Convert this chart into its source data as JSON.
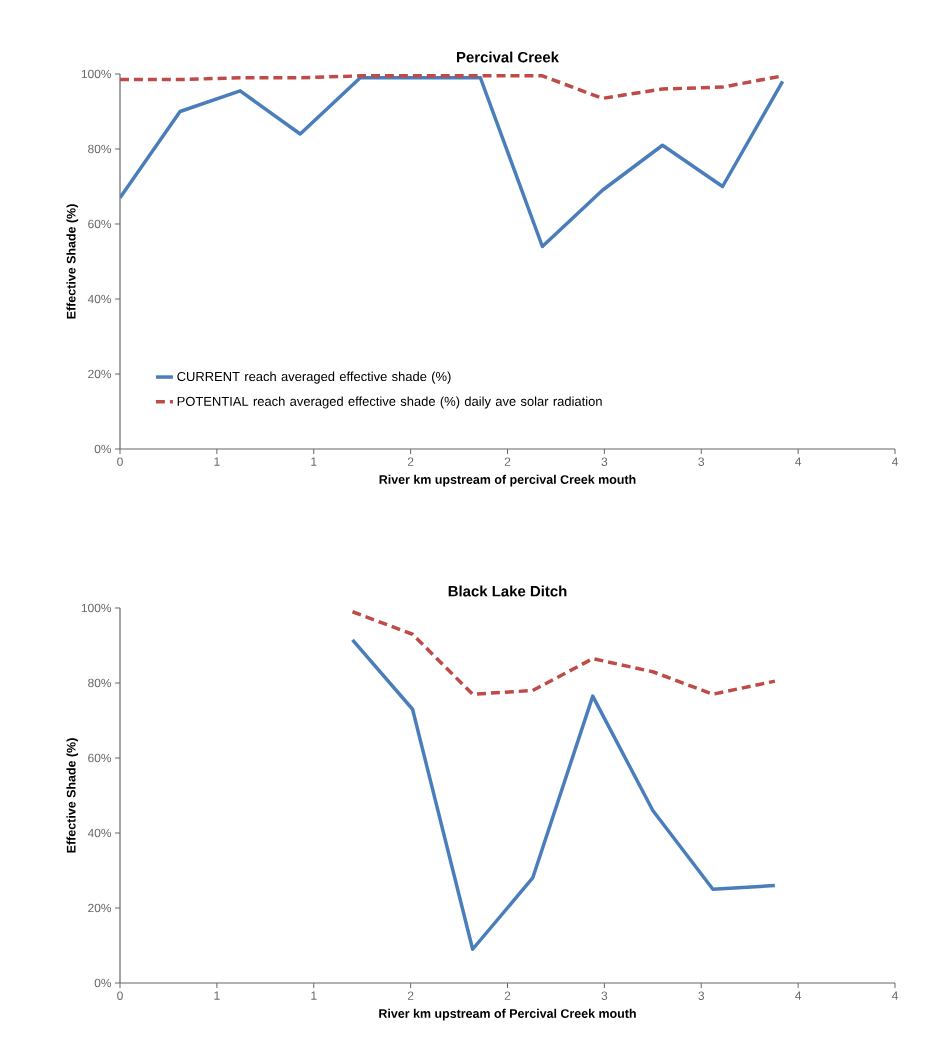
{
  "chart_data": [
    {
      "type": "line",
      "title": "Percival Creek",
      "xlabel": "River km upstream of percival Creek mouth",
      "ylabel": "Effective Shade (%)",
      "x": [
        0,
        0.31,
        0.62,
        0.93,
        1.24,
        1.54,
        1.86,
        2.18,
        2.49,
        2.8,
        3.11,
        3.42
      ],
      "series": [
        {
          "name": "CURRENT reach averaged effective shade (%)",
          "color": "#4a7ebb",
          "line_style": "solid",
          "values": [
            67,
            90,
            95.5,
            84,
            99,
            99,
            99,
            54,
            69,
            81,
            70,
            98
          ]
        },
        {
          "name": "POTENTIAL reach averaged effective shade (%) daily ave solar radiation",
          "color": "#be4b48",
          "line_style": "dashed",
          "values": [
            98.5,
            98.5,
            99,
            99,
            99.5,
            99.5,
            99.5,
            99.5,
            93.5,
            96,
            96.5,
            99.5
          ]
        }
      ],
      "xlim": [
        0,
        4
      ],
      "ylim": [
        0,
        100
      ],
      "xticks": [
        0,
        {
          "value": 0.5,
          "label": "1"
        },
        1,
        {
          "value": 1.5,
          "label": "2"
        },
        2,
        {
          "value": 2.5,
          "label": "3"
        },
        3,
        {
          "value": 3.5,
          "label": "4"
        },
        4
      ],
      "yticks": [
        {
          "value": 0,
          "label": "0%"
        },
        {
          "value": 20,
          "label": "20%"
        },
        {
          "value": 40,
          "label": "40%"
        },
        {
          "value": 60,
          "label": "60%"
        },
        {
          "value": 80,
          "label": "80%"
        },
        {
          "value": 100,
          "label": "100%"
        }
      ],
      "legend": "bottom left"
    },
    {
      "type": "line",
      "title": "Black Lake Ditch",
      "xlabel": "River km upstream of Percival Creek mouth",
      "ylabel": "Effective Shade (%)",
      "x": [
        1.2,
        1.51,
        1.82,
        2.13,
        2.44,
        2.75,
        3.06,
        3.38
      ],
      "series": [
        {
          "color": "#4a7ebb",
          "line_style": "solid",
          "values": [
            91.5,
            73,
            9,
            28,
            76.5,
            46,
            25,
            26
          ]
        },
        {
          "color": "#be4b48",
          "line_style": "dashed",
          "values": [
            99,
            93,
            77,
            78,
            86.5,
            83,
            77,
            80.5
          ]
        }
      ],
      "xlim": [
        0,
        4
      ],
      "ylim": [
        0,
        100
      ],
      "xticks": [
        0,
        {
          "value": 0.5,
          "label": "1"
        },
        1,
        {
          "value": 1.5,
          "label": "2"
        },
        2,
        {
          "value": 2.5,
          "label": "3"
        },
        3,
        {
          "value": 3.5,
          "label": "4"
        },
        4
      ],
      "yticks": [
        {
          "value": 0,
          "label": "0%"
        },
        {
          "value": 20,
          "label": "20%"
        },
        {
          "value": 40,
          "label": "40%"
        },
        {
          "value": 60,
          "label": "60%"
        },
        {
          "value": 80,
          "label": "80%"
        },
        {
          "value": 100,
          "label": "100%"
        }
      ]
    }
  ]
}
